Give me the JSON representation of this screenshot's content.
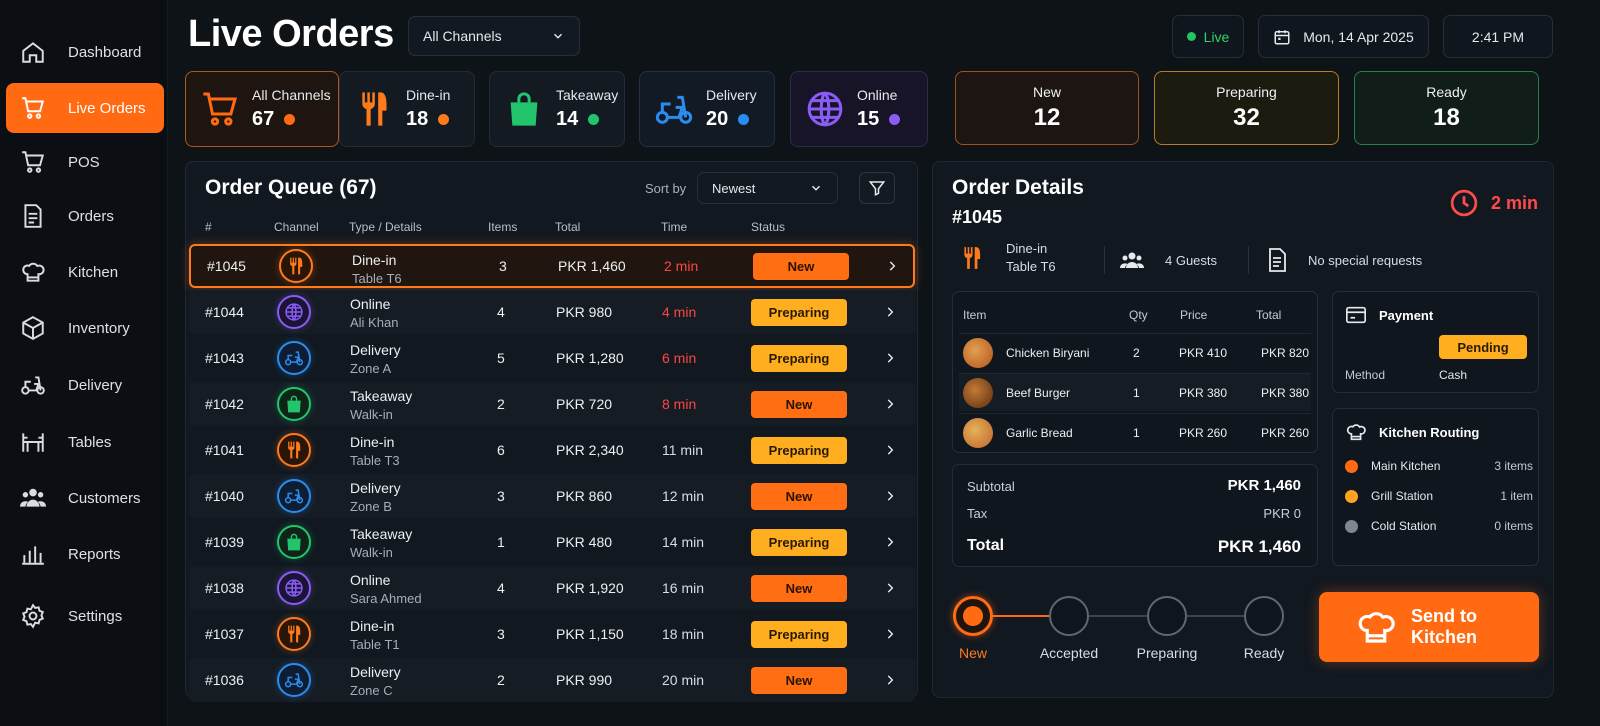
{
  "sidebar": {
    "items": [
      {
        "label": "Dashboard",
        "icon": "home-icon"
      },
      {
        "label": "Live Orders",
        "icon": "cart-icon",
        "active": true
      },
      {
        "label": "POS",
        "icon": "cart-icon"
      },
      {
        "label": "Orders",
        "icon": "document-icon"
      },
      {
        "label": "Kitchen",
        "icon": "chef-hat-icon"
      },
      {
        "label": "Inventory",
        "icon": "box-icon"
      },
      {
        "label": "Delivery",
        "icon": "scooter-icon"
      },
      {
        "label": "Tables",
        "icon": "table-icon"
      },
      {
        "label": "Customers",
        "icon": "users-icon"
      },
      {
        "label": "Reports",
        "icon": "bar-chart-icon"
      },
      {
        "label": "Settings",
        "icon": "gear-icon"
      }
    ]
  },
  "header": {
    "title": "Live Orders",
    "channel_filter": "All Channels",
    "live_label": "Live",
    "date": "Mon, 14 Apr 2025",
    "time": "2:41 PM"
  },
  "channels": [
    {
      "label": "All Channels",
      "count": "67",
      "color": "#ff6a13",
      "icon": "cart-icon"
    },
    {
      "label": "Dine-in",
      "count": "18",
      "color": "#ff7a1a",
      "icon": "utensils-icon"
    },
    {
      "label": "Takeaway",
      "count": "14",
      "color": "#22c56b",
      "icon": "bag-icon"
    },
    {
      "label": "Delivery",
      "count": "20",
      "color": "#2b8cf0",
      "icon": "scooter-icon"
    },
    {
      "label": "Online",
      "count": "15",
      "color": "#8a5cf6",
      "icon": "globe-icon"
    }
  ],
  "status_counts": [
    {
      "label": "New",
      "count": "12"
    },
    {
      "label": "Preparing",
      "count": "32"
    },
    {
      "label": "Ready",
      "count": "18"
    }
  ],
  "queue": {
    "title": "Order Queue (67)",
    "sort_label": "Sort by",
    "sort_value": "Newest",
    "columns": [
      "#",
      "Channel",
      "Type / Details",
      "Items",
      "Total",
      "Time",
      "Status"
    ],
    "rows": [
      {
        "id": "#1045",
        "channel": "dine",
        "type": "Dine-in",
        "detail": "Table T6",
        "items": "3",
        "total": "PKR 1,460",
        "time": "2 min",
        "urgent": true,
        "status": "New"
      },
      {
        "id": "#1044",
        "channel": "online",
        "type": "Online",
        "detail": "Ali Khan",
        "items": "4",
        "total": "PKR 980",
        "time": "4 min",
        "urgent": true,
        "status": "Preparing"
      },
      {
        "id": "#1043",
        "channel": "delivery",
        "type": "Delivery",
        "detail": "Zone A",
        "items": "5",
        "total": "PKR 1,280",
        "time": "6 min",
        "urgent": true,
        "status": "Preparing"
      },
      {
        "id": "#1042",
        "channel": "takeaway",
        "type": "Takeaway",
        "detail": "Walk-in",
        "items": "2",
        "total": "PKR 720",
        "time": "8 min",
        "urgent": true,
        "status": "New"
      },
      {
        "id": "#1041",
        "channel": "dine",
        "type": "Dine-in",
        "detail": "Table T3",
        "items": "6",
        "total": "PKR 2,340",
        "time": "11 min",
        "urgent": false,
        "status": "Preparing"
      },
      {
        "id": "#1040",
        "channel": "delivery",
        "type": "Delivery",
        "detail": "Zone B",
        "items": "3",
        "total": "PKR 860",
        "time": "12 min",
        "urgent": false,
        "status": "New"
      },
      {
        "id": "#1039",
        "channel": "takeaway",
        "type": "Takeaway",
        "detail": "Walk-in",
        "items": "1",
        "total": "PKR 480",
        "time": "14 min",
        "urgent": false,
        "status": "Preparing"
      },
      {
        "id": "#1038",
        "channel": "online",
        "type": "Online",
        "detail": "Sara Ahmed",
        "items": "4",
        "total": "PKR 1,920",
        "time": "16 min",
        "urgent": false,
        "status": "New"
      },
      {
        "id": "#1037",
        "channel": "dine",
        "type": "Dine-in",
        "detail": "Table T1",
        "items": "3",
        "total": "PKR 1,150",
        "time": "18 min",
        "urgent": false,
        "status": "Preparing"
      },
      {
        "id": "#1036",
        "channel": "delivery",
        "type": "Delivery",
        "detail": "Zone C",
        "items": "2",
        "total": "PKR 990",
        "time": "20 min",
        "urgent": false,
        "status": "New"
      }
    ]
  },
  "details": {
    "title": "Order Details",
    "order_id": "#1045",
    "elapsed": "2 min",
    "type": "Dine-in",
    "table": "Table T6",
    "guests": "4 Guests",
    "requests": "No special requests",
    "item_columns": [
      "Item",
      "Qty",
      "Price",
      "Total"
    ],
    "items": [
      {
        "name": "Chicken Biryani",
        "qty": "2",
        "price": "PKR 410",
        "total": "PKR 820"
      },
      {
        "name": "Beef Burger",
        "qty": "1",
        "price": "PKR 380",
        "total": "PKR 380"
      },
      {
        "name": "Garlic Bread",
        "qty": "1",
        "price": "PKR 260",
        "total": "PKR 260"
      }
    ],
    "subtotal_label": "Subtotal",
    "subtotal": "PKR 1,460",
    "tax_label": "Tax",
    "tax": "PKR 0",
    "total_label": "Total",
    "total": "PKR 1,460",
    "payment": {
      "title": "Payment",
      "status": "Pending",
      "method_label": "Method",
      "method": "Cash"
    },
    "routing": {
      "title": "Kitchen Routing",
      "stations": [
        {
          "name": "Main Kitchen",
          "count": "3 items",
          "color": "#ff6a13"
        },
        {
          "name": "Grill Station",
          "count": "1 item",
          "color": "#ffa21f"
        },
        {
          "name": "Cold Station",
          "count": "0 items",
          "color": "#7d8791"
        }
      ]
    },
    "steps": [
      "New",
      "Accepted",
      "Preparing",
      "Ready"
    ],
    "send_label": "Send to Kitchen"
  }
}
